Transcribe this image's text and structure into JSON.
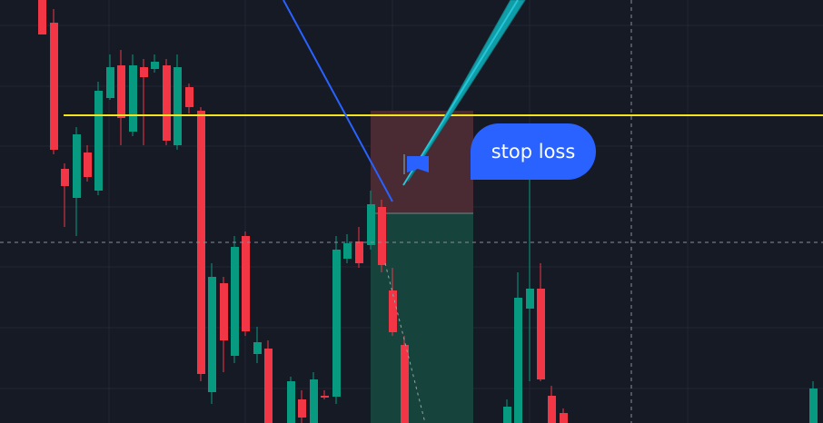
{
  "chart": {
    "colors": {
      "background": "#161a25",
      "grid": "#232734",
      "bull": "#089981",
      "bear": "#f23645",
      "horizontal_line": "#f5e51d",
      "crosshair": "#8a8f9c",
      "trend_line": "#2962ff",
      "arrow": "#0f9ea8",
      "risk_zone": "#4a2a33",
      "reward_zone": "#16443d"
    },
    "icons": {
      "flag": "flag-icon"
    },
    "callout": {
      "label": "stop loss"
    }
  }
}
